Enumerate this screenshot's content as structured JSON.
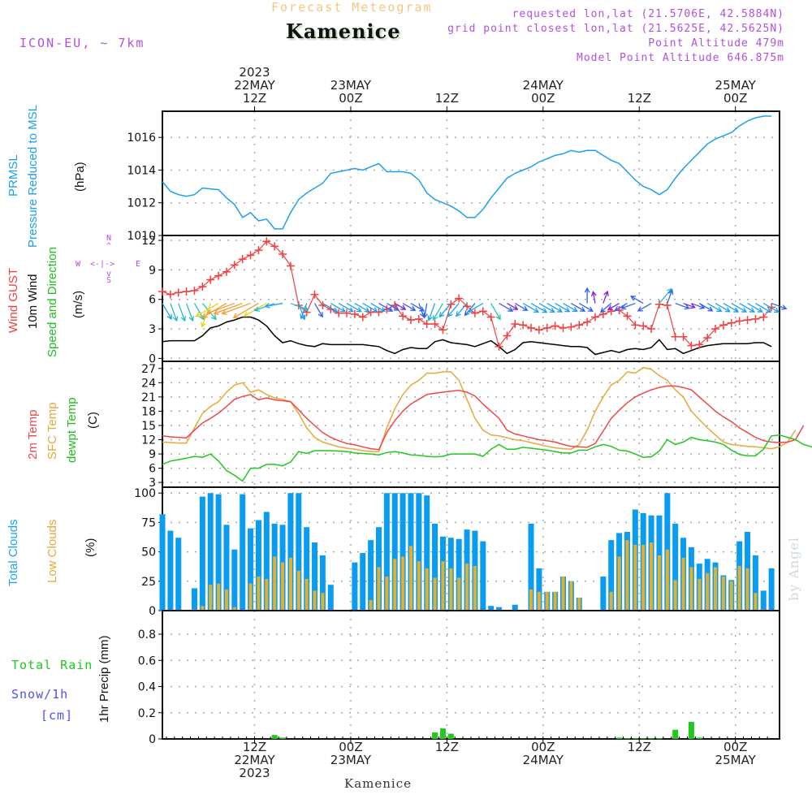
{
  "header": {
    "subtitle": "Forecast Meteogram",
    "title": "Kamenice",
    "model": "ICON-EU, ~ 7km",
    "requested": "requested lon,lat (21.5706E, 42.5884N)",
    "closest": "grid point closest lon,lat (21.5625E, 42.5625N)",
    "altitude": "Point Altitude 479m",
    "model_altitude": "Model Point Altitude 646.875m"
  },
  "footer": {
    "location": "Kamenice",
    "watermark": "by Angel"
  },
  "time_axis": {
    "top": [
      {
        "lines": [
          "2023",
          "22MAY",
          "12Z"
        ],
        "hour": 12
      },
      {
        "lines": [
          "23MAY",
          "00Z"
        ],
        "hour": 24
      },
      {
        "lines": [
          "12Z"
        ],
        "hour": 36
      },
      {
        "lines": [
          "24MAY",
          "00Z"
        ],
        "hour": 48
      },
      {
        "lines": [
          "12Z"
        ],
        "hour": 60
      },
      {
        "lines": [
          "25MAY",
          "00Z"
        ],
        "hour": 72
      }
    ],
    "bottom": [
      {
        "lines": [
          "12Z",
          "22MAY",
          "2023"
        ],
        "hour": 12
      },
      {
        "lines": [
          "00Z",
          "23MAY"
        ],
        "hour": 24
      },
      {
        "lines": [
          "12Z"
        ],
        "hour": 36
      },
      {
        "lines": [
          "00Z",
          "24MAY"
        ],
        "hour": 48
      },
      {
        "lines": [
          "12Z"
        ],
        "hour": 60
      },
      {
        "lines": [
          "00Z",
          "25MAY"
        ],
        "hour": 72
      }
    ]
  },
  "labels": {
    "pressure": {
      "l1": "PRMSL",
      "l2": "Pressure Reduced to MSL",
      "unit": "(hPa)"
    },
    "wind": {
      "gust": "Wind GUST",
      "wind10": "10m Wind",
      "dir": "Speed and Direction",
      "unit": "(m/s)",
      "compass": {
        "n": "N",
        "s": "S",
        "w": "W",
        "e": "E"
      }
    },
    "temp": {
      "t2m": "2m Temp",
      "sfc": "SFC Temp",
      "dew": "dewpt Temp",
      "unit": "(C)"
    },
    "clouds": {
      "total": "Total Clouds",
      "low": "Low Clouds",
      "unit": "(%)"
    },
    "precip": {
      "rain": "Total  Rain",
      "snow": "Snow/1h",
      "snow_unit": "[cm]",
      "axis": "1hr Precip (mm)"
    }
  },
  "colors": {
    "pressure": "#1ea0f0",
    "gust": "#f04040",
    "wind10": "#000000",
    "t2m": "#f04848",
    "sfc": "#e8a838",
    "dew": "#20c820",
    "total_clouds": "#0a9cf0",
    "low_clouds": "#e0b030",
    "rain": "#20c820",
    "snow": "#5050f0",
    "meta": "#b050e0"
  },
  "chart_data": [
    {
      "type": "line",
      "title": "PRMSL Pressure Reduced to MSL",
      "ylabel": "(hPa)",
      "ylim": [
        1010,
        1017.6
      ],
      "yticks": [
        1010,
        1012,
        1014,
        1016
      ],
      "x_start_hour": 0.5,
      "x_step_hours": 1,
      "series": [
        {
          "name": "PRMSL",
          "values": [
            1013.3,
            1012.7,
            1012.5,
            1012.4,
            1012.5,
            1012.9,
            1012.85,
            1012.8,
            1012.3,
            1011.9,
            1011.1,
            1011.4,
            1010.9,
            1011.0,
            1010.4,
            1010.4,
            1011.4,
            1012.2,
            1012.6,
            1012.9,
            1013.2,
            1013.8,
            1013.9,
            1014.0,
            1014.1,
            1014.0,
            1014.2,
            1014.4,
            1013.9,
            1013.9,
            1013.9,
            1013.8,
            1013.4,
            1012.6,
            1012.2,
            1012.0,
            1011.8,
            1011.5,
            1011.1,
            1011.1,
            1011.6,
            1012.3,
            1012.9,
            1013.5,
            1013.8,
            1014.0,
            1014.2,
            1014.5,
            1014.7,
            1014.9,
            1015.0,
            1015.2,
            1015.1,
            1015.2,
            1015.2,
            1014.9,
            1014.6,
            1014.4,
            1013.9,
            1013.4,
            1013.0,
            1012.8,
            1012.5,
            1012.8,
            1013.5,
            1014.1,
            1014.6,
            1015.1,
            1015.6,
            1015.9,
            1016.1,
            1016.3,
            1016.7,
            1017.0,
            1017.2,
            1017.3,
            1017.3
          ]
        }
      ]
    },
    {
      "type": "line",
      "title": "Wind GUST / 10m Wind Speed and Direction",
      "ylabel": "(m/s)",
      "ylim": [
        -0.3,
        12.5
      ],
      "yticks": [
        0,
        3,
        6,
        9,
        12
      ],
      "x_start_hour": 0.5,
      "x_step_hours": 1,
      "series": [
        {
          "name": "Wind GUST",
          "values": [
            6.8,
            6.5,
            6.7,
            6.8,
            6.9,
            7.3,
            8.0,
            8.4,
            8.8,
            9.5,
            10.1,
            10.5,
            11.0,
            11.9,
            11.4,
            10.6,
            9.4,
            5.4,
            4.7,
            6.5,
            5.4,
            5.0,
            4.6,
            4.6,
            4.5,
            4.2,
            4.7,
            4.7,
            5.0,
            5.4,
            4.3,
            3.9,
            4.0,
            3.5,
            3.5,
            2.9,
            5.5,
            6.1,
            5.3,
            4.6,
            4.8,
            4.2,
            1.2,
            2.3,
            3.5,
            3.4,
            3.1,
            2.9,
            3.1,
            3.3,
            3.1,
            3.2,
            3.4,
            3.7,
            4.2,
            4.5,
            4.8,
            4.9,
            4.3,
            3.4,
            3.3,
            3.0,
            5.5,
            5.4,
            2.2,
            2.2,
            1.3,
            1.4,
            2.1,
            3.0,
            3.4,
            3.6,
            3.8,
            3.9,
            4.0,
            4.2,
            5.2
          ]
        },
        {
          "name": "10m Wind",
          "values": [
            1.7,
            1.8,
            1.8,
            1.8,
            1.8,
            2.3,
            3.1,
            3.3,
            3.7,
            3.9,
            4.2,
            4.2,
            3.9,
            3.3,
            2.3,
            1.6,
            1.8,
            1.5,
            1.3,
            1.2,
            1.5,
            1.4,
            1.4,
            1.4,
            1.4,
            1.4,
            1.3,
            1.2,
            0.8,
            0.5,
            0.9,
            1.1,
            1.0,
            1.0,
            1.7,
            1.9,
            1.6,
            1.5,
            1.4,
            1.2,
            1.5,
            1.8,
            1.2,
            0.5,
            0.9,
            1.6,
            1.7,
            1.6,
            1.5,
            1.4,
            1.3,
            1.2,
            1.2,
            1.1,
            0.4,
            0.6,
            0.8,
            0.6,
            0.9,
            1.0,
            0.9,
            1.1,
            1.9,
            0.9,
            1.0,
            0.5,
            0.8,
            1.1,
            1.3,
            1.4,
            1.5,
            1.5,
            1.5,
            1.5,
            1.6,
            1.6,
            1.2
          ]
        },
        {
          "name": "Wind Direction (deg from)",
          "values": [
            330,
            340,
            340,
            340,
            330,
            320,
            20,
            60,
            60,
            70,
            70,
            70,
            60,
            60,
            70,
            80,
            290,
            340,
            20,
            330,
            300,
            300,
            300,
            300,
            300,
            300,
            300,
            300,
            300,
            300,
            300,
            300,
            340,
            10,
            20,
            30,
            40,
            40,
            40,
            40,
            60,
            330,
            300,
            300,
            300,
            300,
            300,
            300,
            300,
            300,
            300,
            300,
            300,
            180,
            170,
            200,
            50,
            60,
            60,
            70,
            120,
            60,
            220,
            200,
            290,
            290,
            290,
            300,
            300,
            300,
            300,
            300,
            300,
            300,
            300,
            300,
            290
          ]
        }
      ]
    },
    {
      "type": "line",
      "title": "2m Temp / SFC Temp / dewpt Temp",
      "ylabel": "(C)",
      "ylim": [
        2,
        28.5
      ],
      "yticks": [
        3,
        6,
        9,
        12,
        15,
        18,
        21,
        24,
        27
      ],
      "x_start_hour": 0.5,
      "x_step_hours": 1,
      "series": [
        {
          "name": "2m Temp",
          "values": [
            12.8,
            12.6,
            12.5,
            12.4,
            14.0,
            15.5,
            16.5,
            17.6,
            19.0,
            20.5,
            21.1,
            21.5,
            20.4,
            20.8,
            20.4,
            20.2,
            20.0,
            18.3,
            16.5,
            15.0,
            13.5,
            12.5,
            11.8,
            11.2,
            10.9,
            10.5,
            10.1,
            9.9,
            13.5,
            16.0,
            18.0,
            19.5,
            20.5,
            21.5,
            21.8,
            22.0,
            22.2,
            22.4,
            22.0,
            21.2,
            19.5,
            18.0,
            16.5,
            14.0,
            13.2,
            12.8,
            12.4,
            12.0,
            11.8,
            11.5,
            11.0,
            10.6,
            10.5,
            10.4,
            11.2,
            13.8,
            16.5,
            18.2,
            19.8,
            21.0,
            21.8,
            22.5,
            23.0,
            23.3,
            23.3,
            23.0,
            22.5,
            21.0,
            19.5,
            18.0,
            16.8,
            15.8,
            14.5,
            13.5,
            12.5,
            11.8,
            11.5,
            11.4,
            11.5,
            12.0,
            15.0
          ]
        },
        {
          "name": "SFC Temp",
          "values": [
            11.5,
            11.4,
            11.3,
            11.3,
            14.5,
            17.5,
            19.0,
            20.0,
            22.0,
            23.5,
            24.0,
            22.0,
            22.5,
            21.5,
            20.8,
            20.5,
            20.0,
            17.5,
            14.5,
            12.5,
            11.5,
            11.0,
            10.5,
            10.2,
            10.0,
            9.7,
            9.5,
            9.5,
            14.5,
            18.5,
            21.5,
            23.5,
            24.5,
            26.0,
            26.0,
            26.3,
            26.3,
            24.5,
            20.5,
            16.5,
            14.0,
            13.0,
            12.8,
            12.4,
            12.0,
            11.8,
            11.4,
            11.0,
            10.6,
            10.3,
            10.1,
            10.0,
            11.0,
            14.0,
            18.0,
            21.0,
            23.5,
            24.5,
            26.3,
            26.0,
            27.2,
            26.8,
            25.5,
            24.5,
            22.5,
            21.0,
            18.0,
            16.2,
            14.5,
            13.0,
            11.5,
            11.0,
            10.8,
            10.6,
            10.5,
            10.3,
            10.1,
            10.5,
            11.5,
            14.0
          ]
        },
        {
          "name": "dewpt Temp",
          "values": [
            6.8,
            7.5,
            7.8,
            8.1,
            8.5,
            8.3,
            9.0,
            7.5,
            5.5,
            4.5,
            3.3,
            6.0,
            6.0,
            6.8,
            6.8,
            6.5,
            7.3,
            9.5,
            9.1,
            9.7,
            9.7,
            9.7,
            9.6,
            9.5,
            9.2,
            9.1,
            9.0,
            8.8,
            9.3,
            9.5,
            9.2,
            8.8,
            8.7,
            8.5,
            8.4,
            8.5,
            9.0,
            9.0,
            9.0,
            9.0,
            8.5,
            10.0,
            11.0,
            10.0,
            10.0,
            10.4,
            10.2,
            10.0,
            9.8,
            9.5,
            9.2,
            9.2,
            9.8,
            9.8,
            10.5,
            11.0,
            10.6,
            9.8,
            9.6,
            9.0,
            8.3,
            8.4,
            9.6,
            12.0,
            11.0,
            11.5,
            12.5,
            12.0,
            11.8,
            11.5,
            11.0,
            9.8,
            8.9,
            8.6,
            8.6,
            10.0,
            12.8,
            13.0,
            12.5,
            12.0,
            11.0,
            10.5,
            10.5,
            10.4,
            10.2,
            9.9,
            10.2,
            12.0
          ]
        }
      ]
    },
    {
      "type": "bar",
      "title": "Total Clouds / Low Clouds",
      "ylabel": "(%)",
      "ylim": [
        0,
        105
      ],
      "yticks": [
        0,
        25,
        50,
        75,
        100
      ],
      "x_start_hour": 0.5,
      "x_step_hours": 1,
      "series": [
        {
          "name": "Total Clouds",
          "values": [
            82,
            68,
            62,
            0,
            19,
            97,
            100,
            99,
            73,
            52,
            99,
            70,
            77,
            84,
            74,
            73,
            100,
            100,
            71,
            58,
            47,
            22,
            0,
            0,
            41,
            49,
            60,
            71,
            100,
            100,
            100,
            100,
            100,
            98,
            74,
            63,
            62,
            61,
            69,
            68,
            59,
            4,
            3,
            0,
            5,
            0,
            74,
            36,
            16,
            16,
            29,
            25,
            11,
            0,
            0,
            29,
            60,
            66,
            67,
            86,
            83,
            81,
            81,
            100,
            74,
            62,
            54,
            40,
            44,
            41,
            30,
            26,
            59,
            67,
            47,
            17,
            36
          ]
        },
        {
          "name": "Low Clouds",
          "values": [
            0,
            0,
            0,
            0,
            1,
            4,
            22,
            23,
            18,
            3,
            0,
            23,
            29,
            27,
            46,
            41,
            45,
            34,
            27,
            17,
            15,
            0,
            0,
            0,
            0,
            0,
            9,
            37,
            29,
            44,
            46,
            55,
            42,
            36,
            28,
            42,
            36,
            28,
            40,
            38,
            0,
            0,
            0,
            0,
            0,
            0,
            18,
            16,
            16,
            16,
            29,
            25,
            11,
            0,
            0,
            0,
            16,
            46,
            60,
            56,
            56,
            58,
            47,
            52,
            26,
            45,
            37,
            27,
            32,
            37,
            29,
            25,
            38,
            36,
            15,
            1,
            0
          ]
        }
      ]
    },
    {
      "type": "bar",
      "title": "1hr Precip (mm)",
      "ylabel": "1hr Precip (mm)",
      "ylim": [
        0,
        0.98
      ],
      "yticks": [
        0,
        0.2,
        0.4,
        0.6,
        0.8
      ],
      "x_start_hour": 0.5,
      "x_step_hours": 1,
      "series": [
        {
          "name": "Total Rain",
          "values": [
            0,
            0,
            0,
            0,
            0,
            0,
            0,
            0,
            0,
            0,
            0,
            0,
            0,
            0,
            0.03,
            0.01,
            0,
            0,
            0,
            0,
            0,
            0,
            0,
            0,
            0,
            0,
            0,
            0,
            0,
            0,
            0,
            0,
            0,
            0,
            0.05,
            0.08,
            0.04,
            0,
            0,
            0,
            0,
            0,
            0,
            0,
            0,
            0,
            0,
            0,
            0,
            0,
            0,
            0,
            0,
            0,
            0,
            0,
            0,
            0.01,
            0.005,
            0.005,
            0.005,
            0.005,
            0.005,
            0,
            0.07,
            0,
            0.13,
            0.01,
            0,
            0,
            0,
            0,
            0,
            0,
            0,
            0,
            0
          ]
        },
        {
          "name": "Snow/1h",
          "values": []
        }
      ]
    }
  ]
}
